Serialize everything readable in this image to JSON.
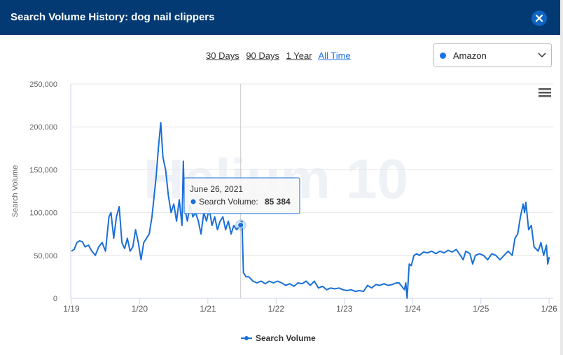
{
  "header": {
    "title": "Search Volume History: dog nail clippers"
  },
  "range_buttons": [
    "30 Days",
    "90 Days",
    "1 Year",
    "All Time"
  ],
  "dropdown": "Amazon",
  "chart_data": {
    "type": "line",
    "ylabel": "Search Volume",
    "watermark": "Helium 10",
    "xlim": [
      2018.99,
      2026.06
    ],
    "ylim": [
      0,
      250000
    ],
    "xticks": [
      {
        "value": 2019,
        "label": "1/19"
      },
      {
        "value": 2020,
        "label": "1/20"
      },
      {
        "value": 2021,
        "label": "1/21"
      },
      {
        "value": 2022,
        "label": "1/22"
      },
      {
        "value": 2023,
        "label": "1/23"
      },
      {
        "value": 2024,
        "label": "1/24"
      },
      {
        "value": 2025,
        "label": "1/25"
      },
      {
        "value": 2026,
        "label": "1/26"
      }
    ],
    "yticks": [
      0,
      {
        "value": 50000,
        "label": "50,000"
      },
      {
        "value": 100000,
        "label": "100,000"
      },
      {
        "value": 150000,
        "label": "150,000"
      },
      {
        "value": 200000,
        "label": "200,000"
      },
      {
        "value": 250000,
        "label": "250,000"
      }
    ],
    "grid": true,
    "x": [
      2019.0,
      2019.04,
      2019.08,
      2019.12,
      2019.16,
      2019.2,
      2019.25,
      2019.3,
      2019.35,
      2019.4,
      2019.45,
      2019.5,
      2019.55,
      2019.58,
      2019.62,
      2019.66,
      2019.7,
      2019.74,
      2019.78,
      2019.82,
      2019.86,
      2019.9,
      2019.94,
      2019.98,
      2020.02,
      2020.06,
      2020.1,
      2020.14,
      2020.18,
      2020.2,
      2020.24,
      2020.28,
      2020.31,
      2020.34,
      2020.38,
      2020.42,
      2020.46,
      2020.5,
      2020.54,
      2020.58,
      2020.62,
      2020.64,
      2020.66,
      2020.7,
      2020.74,
      2020.78,
      2020.82,
      2020.86,
      2020.9,
      2020.94,
      2020.98,
      2021.02,
      2021.06,
      2021.1,
      2021.14,
      2021.18,
      2021.22,
      2021.26,
      2021.3,
      2021.34,
      2021.38,
      2021.42,
      2021.48,
      2021.5,
      2021.52,
      2021.56,
      2021.6,
      2021.66,
      2021.72,
      2021.78,
      2021.84,
      2021.9,
      2021.96,
      2022.02,
      2022.08,
      2022.14,
      2022.2,
      2022.26,
      2022.32,
      2022.38,
      2022.44,
      2022.5,
      2022.56,
      2022.62,
      2022.68,
      2022.74,
      2022.8,
      2022.86,
      2022.92,
      2022.98,
      2023.04,
      2023.1,
      2023.16,
      2023.22,
      2023.28,
      2023.34,
      2023.4,
      2023.46,
      2023.52,
      2023.58,
      2023.64,
      2023.7,
      2023.76,
      2023.8,
      2023.84,
      2023.88,
      2023.9,
      2023.92,
      2023.95,
      2023.98,
      2024.02,
      2024.06,
      2024.1,
      2024.16,
      2024.22,
      2024.28,
      2024.34,
      2024.4,
      2024.46,
      2024.52,
      2024.58,
      2024.64,
      2024.7,
      2024.74,
      2024.78,
      2024.84,
      2024.88,
      2024.92,
      2024.98,
      2025.04,
      2025.1,
      2025.16,
      2025.22,
      2025.28,
      2025.34,
      2025.4,
      2025.46,
      2025.5,
      2025.54,
      2025.58,
      2025.62,
      2025.64,
      2025.66,
      2025.7,
      2025.74,
      2025.78,
      2025.84,
      2025.88,
      2025.92,
      2025.96,
      2025.98,
      2026.0
    ],
    "series": [
      {
        "name": "Search Volume",
        "color": "#1a6fd6",
        "values": [
          55000,
          57000,
          65000,
          67000,
          66000,
          60000,
          62000,
          55000,
          50000,
          60000,
          65000,
          55000,
          95000,
          100000,
          70000,
          95000,
          107000,
          65000,
          58000,
          70000,
          55000,
          60000,
          80000,
          65000,
          45000,
          65000,
          70000,
          75000,
          95000,
          110000,
          140000,
          180000,
          205000,
          165000,
          150000,
          120000,
          100000,
          110000,
          90000,
          115000,
          85000,
          160000,
          105000,
          90000,
          110000,
          95000,
          100000,
          90000,
          75000,
          100000,
          90000,
          105000,
          85000,
          95000,
          80000,
          90000,
          95000,
          80000,
          90000,
          75000,
          85000,
          80000,
          85384,
          90000,
          30000,
          25000,
          25000,
          20000,
          18000,
          20000,
          17000,
          20000,
          18000,
          20000,
          18000,
          15000,
          17000,
          14000,
          18000,
          17000,
          20000,
          15000,
          20000,
          12000,
          14000,
          10000,
          12000,
          11000,
          12000,
          10000,
          9000,
          10000,
          8000,
          9000,
          8000,
          15000,
          12000,
          16000,
          15000,
          17000,
          15000,
          16000,
          18000,
          18000,
          14000,
          10000,
          18000,
          0,
          40000,
          38000,
          50000,
          52000,
          50000,
          54000,
          53000,
          55000,
          52000,
          55000,
          53000,
          56000,
          54000,
          57000,
          50000,
          45000,
          55000,
          52000,
          40000,
          50000,
          52000,
          50000,
          45000,
          52000,
          50000,
          45000,
          50000,
          55000,
          50000,
          70000,
          75000,
          95000,
          110000,
          100000,
          112000,
          80000,
          85000,
          60000,
          55000,
          65000,
          50000,
          62000,
          40000,
          48000
        ]
      }
    ],
    "tooltip": {
      "title": "June 26, 2021",
      "label": "Search Volume:",
      "x": 2021.48,
      "value": 85384,
      "value_label": "85 384"
    }
  }
}
